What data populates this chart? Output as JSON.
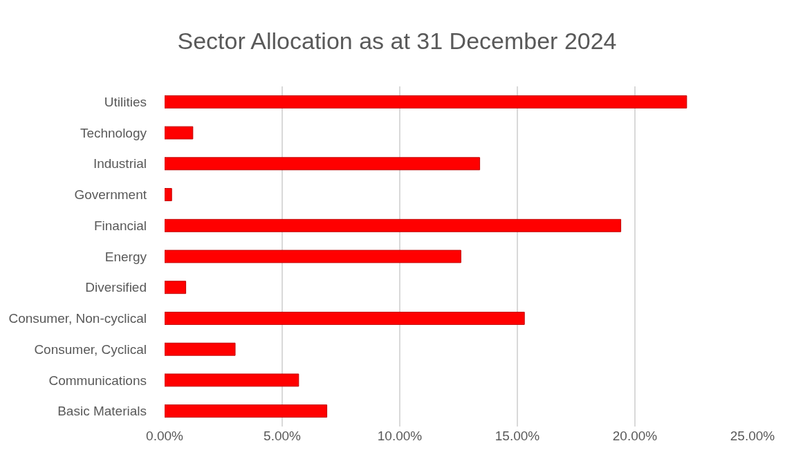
{
  "chart_data": {
    "type": "bar",
    "orientation": "horizontal",
    "title": "Sector Allocation as at 31 December 2024",
    "categories": [
      "Utilities",
      "Technology",
      "Industrial",
      "Government",
      "Financial",
      "Energy",
      "Diversified",
      "Consumer, Non-cyclical",
      "Consumer, Cyclical",
      "Communications",
      "Basic Materials"
    ],
    "values": [
      22.2,
      1.2,
      13.4,
      0.3,
      19.4,
      12.6,
      0.9,
      15.3,
      3.0,
      5.7,
      6.9
    ],
    "color": "#ff0000",
    "xlim": [
      0,
      25
    ],
    "xticks": [
      {
        "value": 0,
        "label": "0.00%"
      },
      {
        "value": 5,
        "label": "5.00%"
      },
      {
        "value": 10,
        "label": "10.00%"
      },
      {
        "value": 15,
        "label": "15.00%"
      },
      {
        "value": 20,
        "label": "20.00%"
      },
      {
        "value": 25,
        "label": "25.00%"
      }
    ],
    "grid": "x"
  }
}
